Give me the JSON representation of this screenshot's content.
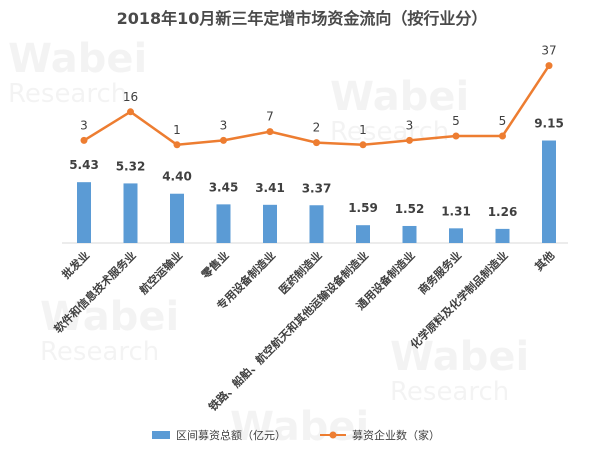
{
  "chart_data": {
    "type": "bar+line",
    "title": "2018年10月新三年定增市场资金流向（按行业分）",
    "categories": [
      "批发业",
      "软件和信息技术服务业",
      "航空运输业",
      "零售业",
      "专用设备制造业",
      "医药制造业",
      "铁路、船舶、航空航天和其他运输设备制造业",
      "通用设备制造业",
      "商务服务业",
      "化学原料及化学制品制造业",
      "其他"
    ],
    "series": [
      {
        "name": "区间募资总额（亿元）",
        "type": "bar",
        "color": "#5b9bd5",
        "values": [
          5.43,
          5.32,
          4.4,
          3.45,
          3.41,
          3.37,
          1.59,
          1.52,
          1.31,
          1.26,
          9.15
        ],
        "labels": [
          "5.43",
          "5.32",
          "4.40",
          "3.45",
          "3.41",
          "3.37",
          "1.59",
          "1.52",
          "1.31",
          "1.26",
          "9.15"
        ]
      },
      {
        "name": "募资企业数（家）",
        "type": "line",
        "color": "#ed7d31",
        "values": [
          3,
          16,
          1,
          3,
          7,
          2,
          1,
          3,
          5,
          5,
          37
        ],
        "labels": [
          "3",
          "16",
          "1",
          "3",
          "7",
          "2",
          "1",
          "3",
          "5",
          "5",
          "37"
        ]
      }
    ],
    "legend_position": "bottom"
  }
}
